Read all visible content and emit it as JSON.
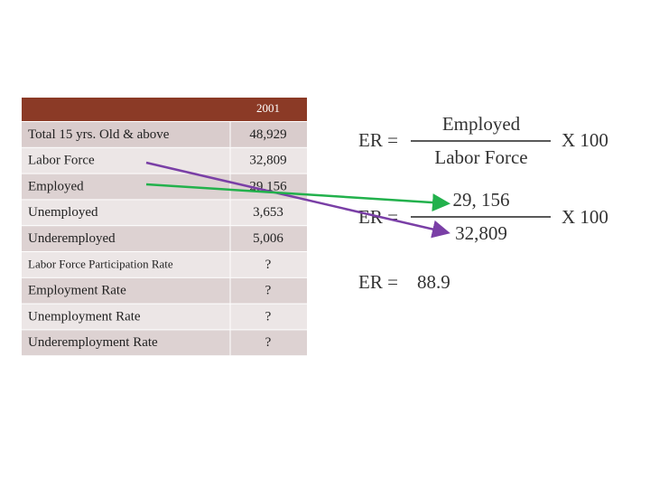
{
  "table": {
    "header": "2001",
    "rows": [
      [
        "Total 15 yrs. Old & above",
        "48,929"
      ],
      [
        "Labor Force",
        "32,809"
      ],
      [
        "Employed",
        "29,156"
      ],
      [
        "Unemployed",
        "3,653"
      ],
      [
        "Underemployed",
        "5,006"
      ],
      [
        "Labor Force Participation Rate",
        "?"
      ],
      [
        "Employment Rate",
        "?"
      ],
      [
        "Unemployment Rate",
        "?"
      ],
      [
        "Underemployment Rate",
        "?"
      ]
    ]
  },
  "formulas": [
    {
      "lhs": "ER =",
      "numerator": "Employed",
      "denominator": "Labor Force",
      "factor": "X 100"
    },
    {
      "lhs": "ER =",
      "numerator": "29, 156",
      "denominator": "32,809",
      "factor": "X 100"
    }
  ],
  "result": {
    "lhs": "ER =",
    "value": "88.9"
  }
}
